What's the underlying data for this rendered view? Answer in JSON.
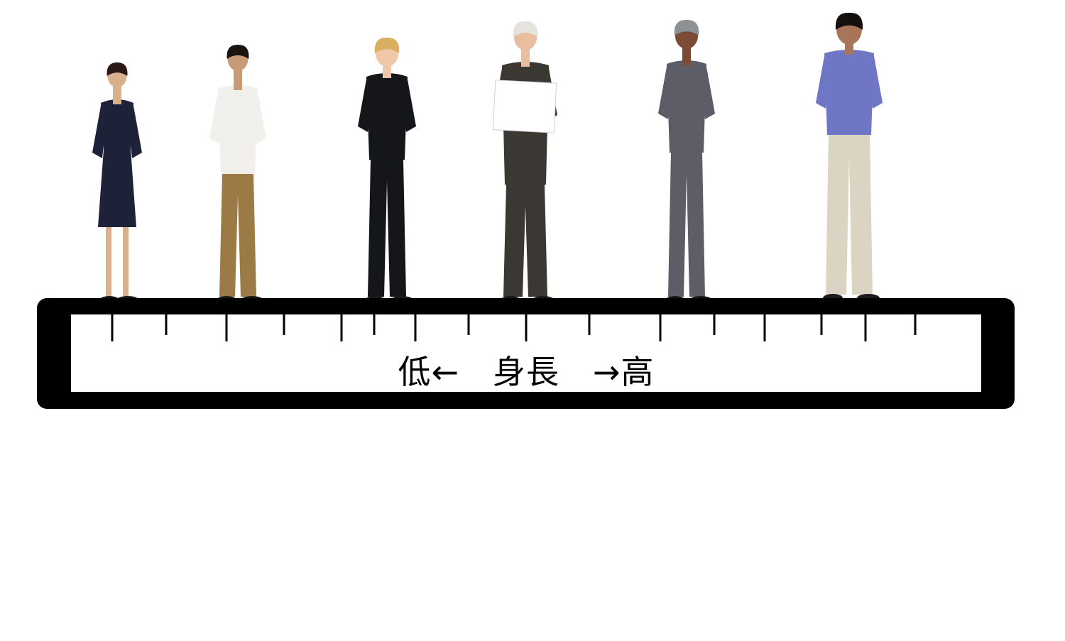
{
  "ruler": {
    "label": "低←　身長　→高",
    "frame_color": "#000000",
    "face_color": "#ffffff"
  },
  "people": [
    {
      "id": "person-1",
      "description_icon": "woman-navy-dress-icon",
      "top": "#1e2238",
      "bottom": "#1e2238",
      "skin": "#d9b08c",
      "hair": "#2a1a16",
      "dress": true
    },
    {
      "id": "person-2",
      "description_icon": "teen-boy-jacket-icon",
      "top": "#f2f0ec",
      "bottom": "#9c7a45",
      "skin": "#c99a76",
      "hair": "#1a1412"
    },
    {
      "id": "person-3",
      "description_icon": "woman-black-suit-icon",
      "top": "#15161a",
      "bottom": "#15161a",
      "skin": "#f0c7a8",
      "hair": "#d8b060"
    },
    {
      "id": "person-4",
      "description_icon": "older-man-sign-icon",
      "top": "#3b3733",
      "bottom": "#3b3733",
      "skin": "#e8bda0",
      "hair": "#e6e2dc",
      "sign": true
    },
    {
      "id": "person-5",
      "description_icon": "woman-grey-suit-icon",
      "top": "#5c5d66",
      "bottom": "#5c5d66",
      "skin": "#7a4c36",
      "hair": "#8d9094"
    },
    {
      "id": "person-6",
      "description_icon": "man-blue-shirt-icon",
      "top": "#6f76c6",
      "bottom": "#dcd4c2",
      "skin": "#a8745a",
      "hair": "#14100e"
    }
  ]
}
